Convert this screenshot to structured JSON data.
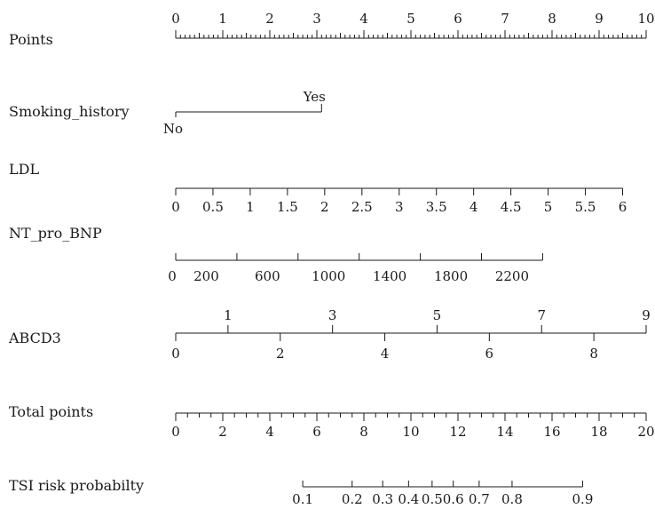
{
  "chart_data": {
    "type": "nomogram",
    "rows": [
      {
        "label": "Points",
        "kind": "scale",
        "range": [
          0,
          10
        ],
        "labels": [
          "0",
          "1",
          "2",
          "3",
          "4",
          "5",
          "6",
          "7",
          "8",
          "9",
          "10"
        ],
        "labels_side": "above",
        "minor_step": 0.1,
        "mid_step": 0.5
      },
      {
        "label": "Smoking_history",
        "kind": "categorical",
        "categories": [
          {
            "name": "No",
            "points": 0,
            "label_side": "below"
          },
          {
            "name": "Yes",
            "points": 3.1,
            "label_side": "above"
          }
        ]
      },
      {
        "label": "LDL",
        "kind": "scale",
        "range": [
          0,
          6
        ],
        "points_range": [
          0,
          9.5
        ],
        "labels": [
          "0",
          "0.5",
          "1",
          "1.5",
          "2",
          "2.5",
          "3",
          "3.5",
          "4",
          "4.5",
          "5",
          "5.5",
          "6"
        ],
        "label_values": [
          0,
          0.5,
          1,
          1.5,
          2,
          2.5,
          3,
          3.5,
          4,
          4.5,
          5,
          5.5,
          6
        ],
        "labels_side": "below"
      },
      {
        "label": "NT_pro_BNP",
        "kind": "scale",
        "range": [
          0,
          2400
        ],
        "points_range": [
          0,
          7.8
        ],
        "labels": [
          "0",
          "200",
          "600",
          "1000",
          "1400",
          "1800",
          "2200"
        ],
        "label_values": [
          0,
          200,
          600,
          1000,
          1400,
          1800,
          2200
        ],
        "tick_values": [
          0,
          400,
          800,
          1200,
          1600,
          2000,
          2400
        ],
        "labels_side": "below"
      },
      {
        "label": "ABCD3",
        "kind": "split-scale",
        "range": [
          0,
          9
        ],
        "points_range": [
          0,
          10
        ],
        "labels_above": [
          "1",
          "3",
          "5",
          "7",
          "9"
        ],
        "values_above": [
          1,
          3,
          5,
          7,
          9
        ],
        "labels_below": [
          "0",
          "2",
          "4",
          "6",
          "8"
        ],
        "values_below": [
          0,
          2,
          4,
          6,
          8
        ]
      },
      {
        "label": "Total points",
        "kind": "scale",
        "range": [
          0,
          20
        ],
        "labels": [
          "0",
          "2",
          "4",
          "6",
          "8",
          "10",
          "12",
          "14",
          "16",
          "18",
          "20"
        ],
        "labels_side": "below",
        "minor_step": 0.5
      },
      {
        "label": "TSI risk probabilty",
        "kind": "scale",
        "total_points_range": [
          5.4,
          17.3
        ],
        "labels": [
          "0.1",
          "0.2",
          "0.3",
          "0.4",
          "0.5",
          "0.6",
          "0.7",
          "0.8",
          "0.9"
        ],
        "label_values": [
          0.1,
          0.2,
          0.3,
          0.4,
          0.5,
          0.6,
          0.7,
          0.8,
          0.9
        ],
        "total_points_at_labels": [
          5.4,
          7.5,
          8.8,
          9.9,
          10.9,
          11.8,
          12.9,
          14.3,
          17.3
        ],
        "labels_side": "below"
      }
    ]
  }
}
